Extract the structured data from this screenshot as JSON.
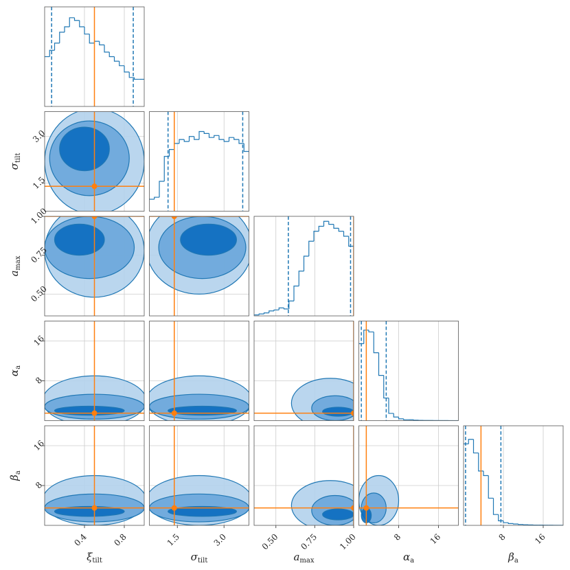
{
  "chart_data": {
    "type": "corner",
    "colors": {
      "line": "#1f77b4",
      "truth": "#ff7f0e",
      "levels": [
        "#b3d1ec",
        "#6aa6da",
        "#0b6cbf"
      ]
    },
    "grid": true,
    "params": [
      {
        "symbol": "ξ",
        "subscript": "tilt",
        "lim": [
          0,
          1
        ],
        "ticks": [
          0.4,
          0.8
        ],
        "truth": 0.5,
        "quantiles": [
          0.07,
          0.89
        ],
        "hist": {
          "bins": [
            0,
            0.05,
            0.1,
            0.15,
            0.2,
            0.25,
            0.3,
            0.35,
            0.4,
            0.45,
            0.5,
            0.55,
            0.6,
            0.65,
            0.7,
            0.75,
            0.8,
            0.85,
            0.9,
            0.95,
            1.0
          ],
          "counts": [
            55,
            62,
            70,
            82,
            88,
            98,
            95,
            88,
            80,
            70,
            72,
            68,
            60,
            55,
            50,
            45,
            38,
            32,
            30,
            30
          ],
          "ylim": [
            0,
            110
          ]
        }
      },
      {
        "symbol": "σ",
        "subscript": "tilt",
        "lim": [
          0.6,
          3.8
        ],
        "ticks": [
          1.5,
          {
            "value": 3,
            "label": "3.0"
          }
        ],
        "truth": 1.4,
        "quantiles": [
          1.2,
          3.6
        ],
        "hist": {
          "bins": [
            0.6,
            0.76,
            0.92,
            1.08,
            1.24,
            1.4,
            1.56,
            1.72,
            1.88,
            2.04,
            2.2,
            2.36,
            2.52,
            2.68,
            2.84,
            3.0,
            3.16,
            3.32,
            3.48,
            3.64,
            3.8
          ],
          "counts": [
            12,
            14,
            30,
            55,
            62,
            68,
            72,
            70,
            75,
            72,
            80,
            78,
            74,
            76,
            72,
            70,
            74,
            72,
            68,
            60
          ],
          "ylim": [
            0,
            100
          ]
        }
      },
      {
        "symbol": "a",
        "subscript": "max",
        "lim": [
          0.36,
          1.0
        ],
        "ticks": [
          {
            "value": 0.5,
            "label": "0.50"
          },
          0.75,
          {
            "value": 1,
            "label": "1.00"
          }
        ],
        "truth": 1.0,
        "quantiles": [
          0.58,
          0.98
        ],
        "hist": {
          "bins": [
            0.36,
            0.392,
            0.424,
            0.456,
            0.488,
            0.52,
            0.552,
            0.584,
            0.616,
            0.648,
            0.68,
            0.712,
            0.744,
            0.776,
            0.808,
            0.84,
            0.872,
            0.904,
            0.936,
            0.968,
            1.0
          ],
          "counts": [
            1,
            2,
            3,
            5,
            6,
            8,
            7,
            15,
            30,
            45,
            60,
            75,
            85,
            90,
            95,
            92,
            88,
            85,
            80,
            70
          ],
          "ylim": [
            0,
            100
          ]
        }
      },
      {
        "symbol": "α",
        "subscript": "a",
        "lim": [
          0,
          20
        ],
        "ticks": [
          8,
          16
        ],
        "truth": 1.5,
        "quantiles": [
          0.5,
          5.5
        ],
        "hist": {
          "bins": [
            0,
            1,
            2,
            3,
            4,
            5,
            6,
            7,
            8,
            9,
            10,
            11,
            12,
            13,
            14,
            15,
            16,
            17,
            18,
            19,
            20
          ],
          "counts": [
            85,
            100,
            98,
            75,
            50,
            25,
            8,
            4,
            2,
            1,
            1,
            0.5,
            0.3,
            0.2,
            0.2,
            0.1,
            0.1,
            0.1,
            0,
            0
          ],
          "ylim": [
            0,
            110
          ]
        }
      },
      {
        "symbol": "β",
        "subscript": "a",
        "lim": [
          0,
          20
        ],
        "ticks": [
          8,
          16
        ],
        "truth": 3.5,
        "quantiles": [
          0.4,
          7.5
        ],
        "hist": {
          "bins": [
            0,
            1,
            2,
            3,
            4,
            5,
            6,
            7,
            8,
            9,
            10,
            11,
            12,
            13,
            14,
            15,
            16,
            17,
            18,
            19,
            20
          ],
          "counts": [
            90,
            95,
            80,
            60,
            55,
            30,
            12,
            5,
            3,
            2,
            1.5,
            1,
            0.7,
            0.5,
            0.3,
            0.3,
            0.2,
            0.2,
            0.1,
            0.1
          ],
          "ylim": [
            0,
            110
          ]
        }
      }
    ],
    "panels": [
      {
        "x": 0,
        "y": 1,
        "contours": [
          [
            0.5,
            2.2,
            0.5,
            1.7
          ],
          [
            0.45,
            2.3,
            0.4,
            1.2
          ],
          [
            0.4,
            2.6,
            0.25,
            0.7
          ]
        ]
      },
      {
        "x": 0,
        "y": 2,
        "contours": [
          [
            0.5,
            0.78,
            0.5,
            0.3
          ],
          [
            0.45,
            0.8,
            0.45,
            0.2
          ],
          [
            0.35,
            0.85,
            0.25,
            0.1
          ]
        ]
      },
      {
        "x": 1,
        "y": 2,
        "contours": [
          [
            2.2,
            0.8,
            1.7,
            0.3
          ],
          [
            2.3,
            0.8,
            1.4,
            0.2
          ],
          [
            2.5,
            0.85,
            0.9,
            0.1
          ]
        ]
      },
      {
        "x": 0,
        "y": 3,
        "contours": [
          [
            0.5,
            4,
            0.52,
            5
          ],
          [
            0.5,
            2.8,
            0.5,
            2.5
          ],
          [
            0.45,
            2,
            0.35,
            0.9
          ]
        ]
      },
      {
        "x": 1,
        "y": 3,
        "contours": [
          [
            2.2,
            4,
            1.7,
            5
          ],
          [
            2.2,
            2.8,
            1.6,
            2.5
          ],
          [
            2.3,
            2,
            1.1,
            0.9
          ]
        ]
      },
      {
        "x": 2,
        "y": 3,
        "contours": [
          [
            0.85,
            3.5,
            0.25,
            5
          ],
          [
            0.88,
            2.5,
            0.15,
            2.5
          ],
          [
            0.9,
            1.8,
            0.1,
            0.9
          ]
        ]
      },
      {
        "x": 0,
        "y": 4,
        "contours": [
          [
            0.5,
            5,
            0.52,
            5
          ],
          [
            0.5,
            3.5,
            0.5,
            2.8
          ],
          [
            0.45,
            2.8,
            0.35,
            1
          ]
        ]
      },
      {
        "x": 1,
        "y": 4,
        "contours": [
          [
            2.2,
            5,
            1.7,
            5
          ],
          [
            2.2,
            3.5,
            1.6,
            2.8
          ],
          [
            2.3,
            2.8,
            1.1,
            1
          ]
        ]
      },
      {
        "x": 2,
        "y": 4,
        "contours": [
          [
            0.85,
            4,
            0.25,
            5
          ],
          [
            0.88,
            3,
            0.15,
            3
          ],
          [
            0.9,
            2.2,
            0.1,
            1.1
          ]
        ]
      },
      {
        "x": 3,
        "y": 4,
        "contours": [
          [
            4,
            5,
            4,
            5
          ],
          [
            3,
            3.5,
            2.5,
            3
          ],
          [
            1.5,
            2,
            1,
            1.5
          ]
        ]
      }
    ]
  }
}
